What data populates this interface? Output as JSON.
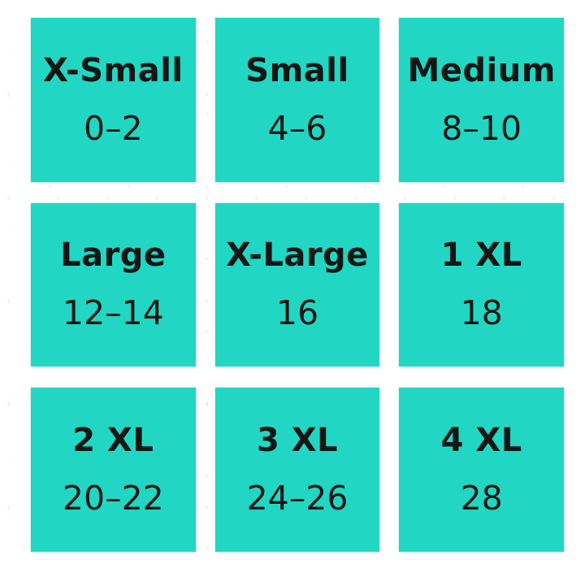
{
  "chart_data": {
    "type": "table",
    "title": "",
    "columns": [
      "size_label",
      "numeric_range"
    ],
    "rows": [
      [
        "X-Small",
        "0–2"
      ],
      [
        "Small",
        "4–6"
      ],
      [
        "Medium",
        "8–10"
      ],
      [
        "Large",
        "12–14"
      ],
      [
        "X-Large",
        "16"
      ],
      [
        "1 XL",
        "18"
      ],
      [
        "2 XL",
        "20–22"
      ],
      [
        "3 XL",
        "24–26"
      ],
      [
        "4 XL",
        "28"
      ]
    ],
    "layout": "3x3-grid"
  },
  "colors": {
    "tile_background": "#21d7c3",
    "text": "#121716",
    "page_background": "#ffffff"
  },
  "sizes": [
    {
      "label": "X-Small",
      "range": "0–2"
    },
    {
      "label": "Small",
      "range": "4–6"
    },
    {
      "label": "Medium",
      "range": "8–10"
    },
    {
      "label": "Large",
      "range": "12–14"
    },
    {
      "label": "X-Large",
      "range": "16"
    },
    {
      "label": "1 XL",
      "range": "18"
    },
    {
      "label": "2 XL",
      "range": "20–22"
    },
    {
      "label": "3 XL",
      "range": "24–26"
    },
    {
      "label": "4 XL",
      "range": "28"
    }
  ]
}
